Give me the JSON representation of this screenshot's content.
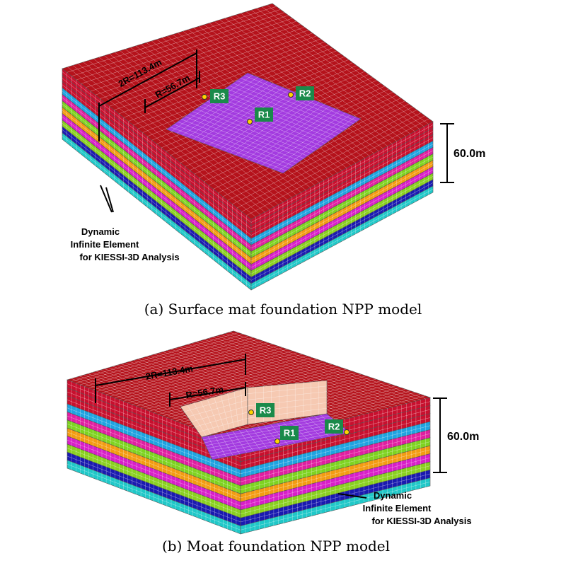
{
  "figures": [
    {
      "diameter": "2R=113.4m",
      "radius": "R=56.7m",
      "points": [
        "R3",
        "R2",
        "R1"
      ],
      "depth": "60.0m",
      "note": [
        "Dynamic",
        "Infinite Element",
        "for KIESSI-3D Analysis"
      ],
      "caption": "(a) Surface mat foundation NPP model"
    },
    {
      "diameter": "2R=113.4m",
      "radius": "R=56.7m",
      "points": [
        "R3",
        "R1",
        "R2"
      ],
      "depth": "60.0m",
      "note": [
        "Dynamic",
        "Infinite Element",
        "for KIESSI-3D Analysis"
      ],
      "caption": "(b) Moat foundation NPP model"
    }
  ]
}
